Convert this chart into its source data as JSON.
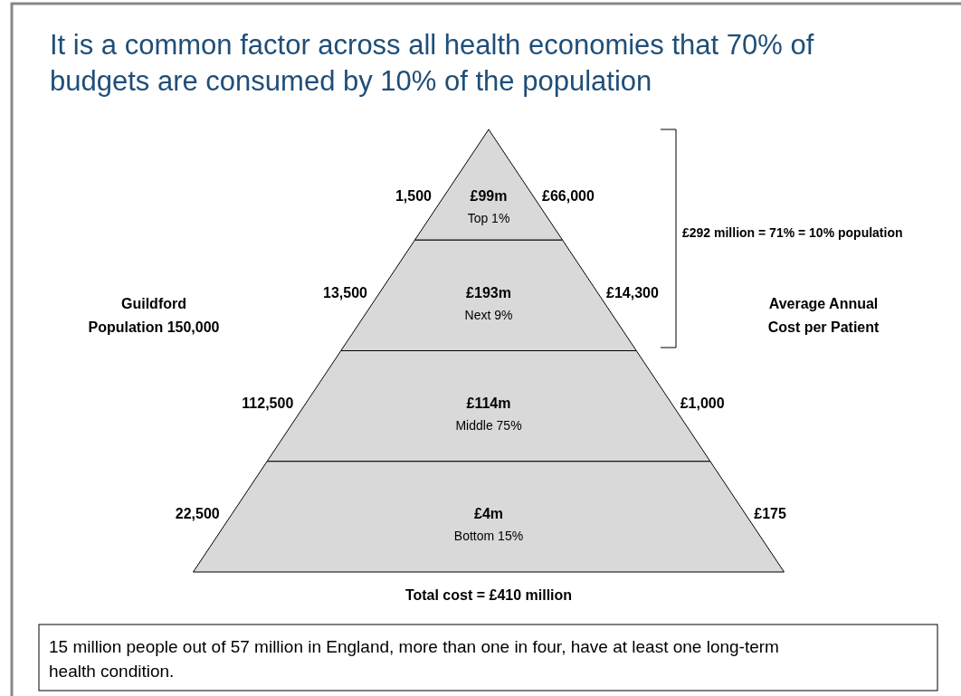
{
  "chart_data": {
    "type": "other",
    "title": "It is a common factor across all health economies that 70% of budgets are consumed by 10% of the population",
    "categories": [
      "Top 1%",
      "Next 9%",
      "Middle 75%",
      "Bottom 15%"
    ],
    "series": [
      {
        "color": "#d9d9d9",
        "values": [
          99,
          193,
          114,
          4
        ],
        "value_labels": [
          "£99m",
          "£193m",
          "£114m",
          "£4m"
        ]
      },
      {
        "values": [
          1500,
          13500,
          112500,
          22500
        ],
        "value_labels": [
          "1,500",
          "13,500",
          "112,500",
          "22,500"
        ]
      },
      {
        "values": [
          66000,
          14300,
          1000,
          175
        ],
        "value_labels": [
          "£66,000",
          "£14,300",
          "£1,000",
          "£175"
        ]
      }
    ],
    "annotations": [
      "Guildford\nPopulation 150,000",
      "Average Annual\nCost per Patient",
      "£292 million = 71% = 10% population",
      "Total cost = £410 million",
      "15 million people out of 57 million in England, more than one in four, have at least one long-term\nhealth condition."
    ]
  }
}
